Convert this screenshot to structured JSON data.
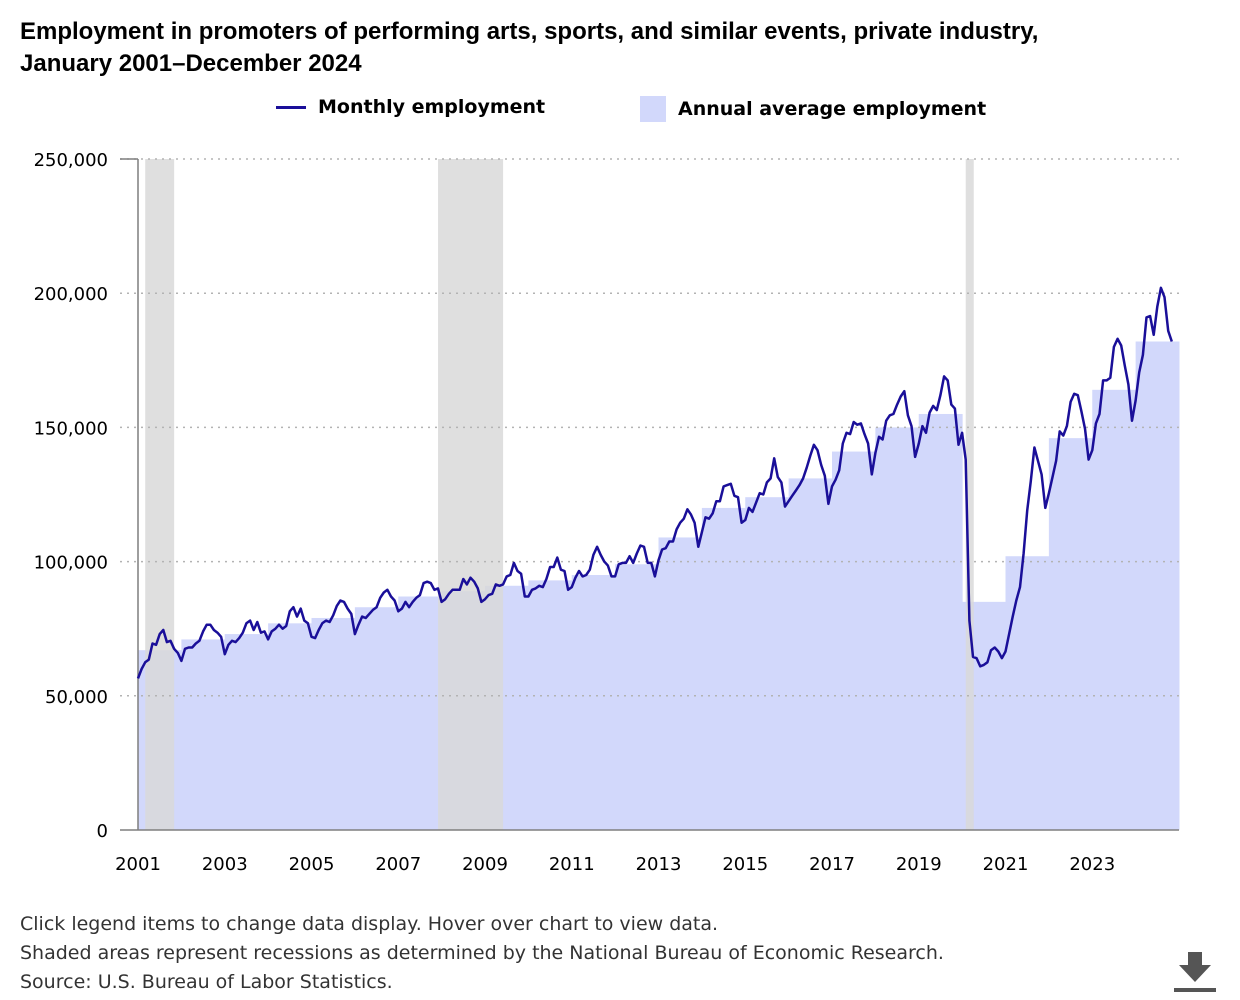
{
  "title_line1": "Employment in promoters of performing arts, sports, and similar events, private industry,",
  "title_line2": "January 2001–December 2024",
  "footer": {
    "note1": "Click legend items to change data display. Hover over chart to view data.",
    "note2": "Shaded areas represent recessions as determined by the National Bureau of Economic Research.",
    "source": "Source: U.S. Bureau of Labor Statistics."
  },
  "download_icon": "download-icon",
  "colors": {
    "line": "#1a0f99",
    "annual_fill": "#d2d8fb",
    "recession": "#d9d9d9",
    "grid": "#b3b3b3",
    "axis": "#7f7f7f"
  },
  "chart_data": {
    "type": "line",
    "legend": [
      "Monthly employment",
      "Annual average employment"
    ],
    "legend_position": "top",
    "xlim": [
      2001,
      2025
    ],
    "ylim": [
      0,
      250000
    ],
    "yticks": [
      0,
      50000,
      100000,
      150000,
      200000,
      250000
    ],
    "ytick_labels": [
      "0",
      "50,000",
      "100,000",
      "150,000",
      "200,000",
      "250,000"
    ],
    "xticks": [
      2001,
      2003,
      2005,
      2007,
      2009,
      2011,
      2013,
      2015,
      2017,
      2019,
      2021,
      2023
    ],
    "xtick_labels": [
      "2001",
      "2003",
      "2005",
      "2007",
      "2009",
      "2011",
      "2013",
      "2015",
      "2017",
      "2019",
      "2021",
      "2023"
    ],
    "grid": "horizontal dotted",
    "recessions": [
      {
        "start": "2001-03",
        "end": "2001-11"
      },
      {
        "start": "2007-12",
        "end": "2009-06"
      },
      {
        "start": "2020-02",
        "end": "2020-04"
      }
    ],
    "annual_average": {
      "name": "Annual average employment",
      "years": [
        2001,
        2002,
        2003,
        2004,
        2005,
        2006,
        2007,
        2008,
        2009,
        2010,
        2011,
        2012,
        2013,
        2014,
        2015,
        2016,
        2017,
        2018,
        2019,
        2020,
        2021,
        2022,
        2023,
        2024
      ],
      "values": [
        67000,
        71000,
        73000,
        77000,
        79000,
        83000,
        87000,
        89000,
        91000,
        93000,
        95000,
        99000,
        109000,
        120000,
        124000,
        131000,
        141000,
        150000,
        155000,
        85000,
        102000,
        146000,
        164000,
        182000
      ]
    },
    "monthly": {
      "name": "Monthly employment",
      "start": "2001-01",
      "values": [
        56500,
        60000,
        62500,
        63500,
        69500,
        69000,
        73000,
        74500,
        70000,
        70500,
        67500,
        66000,
        63000,
        67500,
        68000,
        68000,
        69500,
        70500,
        74000,
        76500,
        76500,
        74500,
        73500,
        72000,
        65500,
        69000,
        70500,
        70000,
        71500,
        73500,
        77000,
        78000,
        74500,
        77500,
        73500,
        74000,
        71000,
        74000,
        75000,
        76500,
        75000,
        76000,
        81500,
        83000,
        79500,
        82500,
        78000,
        77000,
        72000,
        71500,
        74500,
        77000,
        78000,
        77500,
        80000,
        83500,
        85500,
        85000,
        82500,
        80500,
        73000,
        76500,
        79500,
        79000,
        80500,
        82000,
        83000,
        86500,
        88500,
        89500,
        87000,
        85500,
        81500,
        82500,
        85000,
        83000,
        85000,
        86500,
        87500,
        92000,
        92500,
        92000,
        89500,
        90000,
        85000,
        86000,
        88000,
        89500,
        89500,
        89500,
        93500,
        91500,
        94000,
        92500,
        90000,
        85000,
        86000,
        87500,
        88000,
        91500,
        91000,
        91500,
        94500,
        95000,
        99500,
        96500,
        95500,
        87000,
        87000,
        89500,
        90000,
        91000,
        90500,
        93500,
        98000,
        98000,
        101500,
        97000,
        96500,
        89500,
        90500,
        94000,
        96500,
        94500,
        95000,
        97000,
        102500,
        105500,
        102500,
        100000,
        98500,
        94500,
        94500,
        99000,
        99500,
        99500,
        102000,
        99500,
        103000,
        106000,
        105500,
        99500,
        99500,
        94500,
        100500,
        104500,
        105000,
        107500,
        107500,
        112000,
        114500,
        116000,
        119500,
        117500,
        114500,
        105500,
        111000,
        116500,
        116000,
        118000,
        122500,
        122500,
        128000,
        128500,
        129000,
        124500,
        124000,
        114500,
        115500,
        120000,
        118500,
        122000,
        125500,
        125000,
        129500,
        131000,
        138500,
        131500,
        129500,
        120500,
        122500,
        124500,
        126500,
        128500,
        131000,
        135000,
        139500,
        143500,
        141500,
        136000,
        132000,
        121500,
        128000,
        130500,
        134000,
        144000,
        148000,
        147500,
        152000,
        151000,
        151500,
        147500,
        144000,
        132500,
        140500,
        146500,
        145500,
        152500,
        154500,
        155000,
        158500,
        161500,
        163500,
        154500,
        150500,
        139000,
        144000,
        150500,
        148000,
        155500,
        158000,
        156500,
        162000,
        169000,
        167500,
        158500,
        157000,
        143500,
        148000,
        138000,
        78000,
        64500,
        64000,
        61000,
        61500,
        62500,
        67000,
        68000,
        66500,
        64000,
        66500,
        73000,
        79500,
        85500,
        90500,
        103000,
        119000,
        130000,
        142500,
        137500,
        132500,
        120000,
        125500,
        131500,
        137500,
        148500,
        147000,
        150500,
        159500,
        162500,
        162000,
        156000,
        149500,
        138000,
        141500,
        151500,
        155000,
        167500,
        167500,
        168500,
        180000,
        183000,
        180500,
        173000,
        166000,
        152500,
        160000,
        170500,
        177000,
        191000,
        191500,
        184500,
        195000,
        202000,
        198500,
        186000,
        182000
      ]
    }
  }
}
